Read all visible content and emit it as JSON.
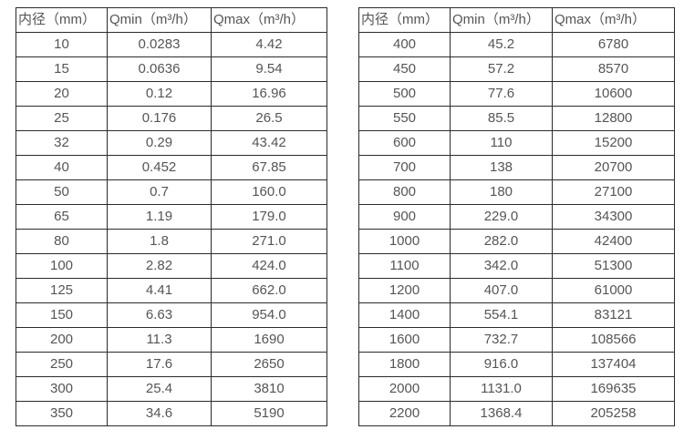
{
  "page": {
    "background_color": "#ffffff",
    "border_color": "#2b2b2b",
    "text_color": "#555555"
  },
  "tables": [
    {
      "name": "flow-table-small-diameters",
      "columns": [
        "内径（mm）",
        "Qmin（m³/h）",
        "Qmax（m³/h）"
      ],
      "rows": [
        [
          "10",
          "0.0283",
          "4.42"
        ],
        [
          "15",
          "0.0636",
          "9.54"
        ],
        [
          "20",
          "0.12",
          "16.96"
        ],
        [
          "25",
          "0.176",
          "26.5"
        ],
        [
          "32",
          "0.29",
          "43.42"
        ],
        [
          "40",
          "0.452",
          "67.85"
        ],
        [
          "50",
          "0.7",
          "160.0"
        ],
        [
          "65",
          "1.19",
          "179.0"
        ],
        [
          "80",
          "1.8",
          "271.0"
        ],
        [
          "100",
          "2.82",
          "424.0"
        ],
        [
          "125",
          "4.41",
          "662.0"
        ],
        [
          "150",
          "6.63",
          "954.0"
        ],
        [
          "200",
          "11.3",
          "1690"
        ],
        [
          "250",
          "17.6",
          "2650"
        ],
        [
          "300",
          "25.4",
          "3810"
        ],
        [
          "350",
          "34.6",
          "5190"
        ]
      ]
    },
    {
      "name": "flow-table-large-diameters",
      "columns": [
        "内径（mm）",
        "Qmin（m³/h）",
        "Qmax（m³/h）"
      ],
      "rows": [
        [
          "400",
          "45.2",
          "6780"
        ],
        [
          "450",
          "57.2",
          "8570"
        ],
        [
          "500",
          "77.6",
          "10600"
        ],
        [
          "550",
          "85.5",
          "12800"
        ],
        [
          "600",
          "110",
          "15200"
        ],
        [
          "700",
          "138",
          "20700"
        ],
        [
          "800",
          "180",
          "27100"
        ],
        [
          "900",
          "229.0",
          "34300"
        ],
        [
          "1000",
          "282.0",
          "42400"
        ],
        [
          "1100",
          "342.0",
          "51300"
        ],
        [
          "1200",
          "407.0",
          "61000"
        ],
        [
          "1400",
          "554.1",
          "83121"
        ],
        [
          "1600",
          "732.7",
          "108566"
        ],
        [
          "1800",
          "916.0",
          "137404"
        ],
        [
          "2000",
          "1131.0",
          "169635"
        ],
        [
          "2200",
          "1368.4",
          "205258"
        ]
      ]
    }
  ]
}
